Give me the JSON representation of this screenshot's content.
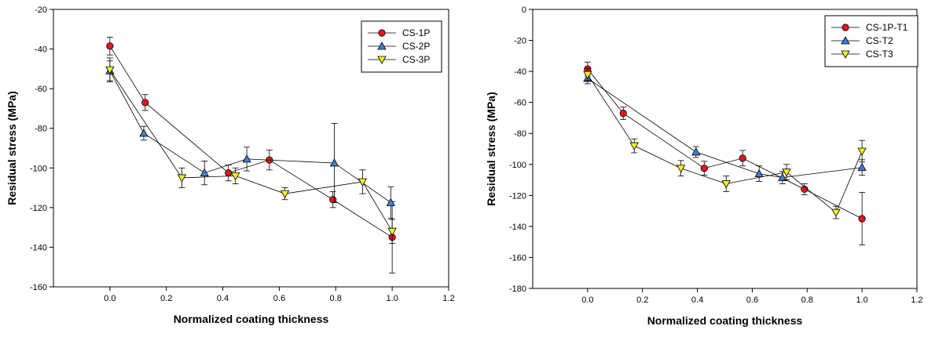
{
  "chart_data": [
    {
      "type": "scatter",
      "title": "",
      "xlabel": "Normalized coating thickness",
      "ylabel": "Residual stress (MPa)",
      "xlim": [
        -0.2,
        1.2
      ],
      "ylim": [
        -160,
        -20
      ],
      "xticks": [
        "0.0",
        "0.2",
        "0.4",
        "0.6",
        "0.8",
        "1.0",
        "1.2"
      ],
      "yticks": [
        "-20",
        "-40",
        "-60",
        "-80",
        "-100",
        "-120",
        "-140",
        "-160"
      ],
      "legend_position": "top-right",
      "series": [
        {
          "name": "CS-1P",
          "marker": "circle",
          "color": "#e8141e",
          "x": [
            0.0,
            0.125,
            0.42,
            0.565,
            0.79,
            1.0
          ],
          "y": [
            -38.5,
            -67,
            -102.5,
            -96,
            -116,
            -135
          ],
          "err": [
            4.5,
            4,
            4,
            5,
            4,
            18
          ]
        },
        {
          "name": "CS-2P",
          "marker": "triangle-up",
          "color": "#3a7fd6",
          "x": [
            0.0,
            0.12,
            0.335,
            0.485,
            0.795,
            0.995
          ],
          "y": [
            -51,
            -82.5,
            -102.5,
            -95.5,
            -97.5,
            -117.5
          ],
          "err": [
            5,
            3.5,
            6,
            6,
            20,
            8
          ]
        },
        {
          "name": "CS-3P",
          "marker": "triangle-down",
          "color": "#f2f21a",
          "x": [
            0.0,
            0.255,
            0.445,
            0.62,
            0.895,
            1.0
          ],
          "y": [
            -50.5,
            -105,
            -104,
            -113,
            -107,
            -132
          ],
          "err": [
            6,
            5,
            4,
            3,
            6,
            6
          ]
        }
      ]
    },
    {
      "type": "scatter",
      "title": "",
      "xlabel": "Normalized coating thickness",
      "ylabel": "Residual stress (MPa)",
      "xlim": [
        -0.2,
        1.2
      ],
      "ylim": [
        -180,
        0
      ],
      "xticks": [
        "0.0",
        "0.2",
        "0.4",
        "0.6",
        "0.8",
        "1.0",
        "1.2"
      ],
      "yticks": [
        "0",
        "-20",
        "-40",
        "-60",
        "-80",
        "-100",
        "-120",
        "-140",
        "-160",
        "-180"
      ],
      "legend_position": "top-right",
      "series": [
        {
          "name": "CS-1P-T1",
          "marker": "circle",
          "color": "#e8141e",
          "x": [
            0.0,
            0.13,
            0.425,
            0.565,
            0.79,
            1.0
          ],
          "y": [
            -38.5,
            -67,
            -102.5,
            -96,
            -116,
            -135
          ],
          "err": [
            4.5,
            4,
            4.5,
            5,
            3.5,
            17
          ]
        },
        {
          "name": "CS-T2",
          "marker": "triangle-up",
          "color": "#3a7fd6",
          "x": [
            0.0,
            0.395,
            0.625,
            0.71,
            1.0
          ],
          "y": [
            -44.5,
            -92,
            -106,
            -108.5,
            -102
          ],
          "err": [
            3.5,
            3.5,
            5,
            4,
            5
          ]
        },
        {
          "name": "CS-T3",
          "marker": "triangle-down",
          "color": "#f2f21a",
          "x": [
            0.0,
            0.17,
            0.34,
            0.505,
            0.725,
            0.905,
            1.0
          ],
          "y": [
            -42,
            -88,
            -102.5,
            -112.5,
            -105,
            -131,
            -91.5
          ],
          "err": [
            4,
            4.5,
            5,
            5,
            5,
            4,
            7
          ]
        }
      ]
    }
  ]
}
